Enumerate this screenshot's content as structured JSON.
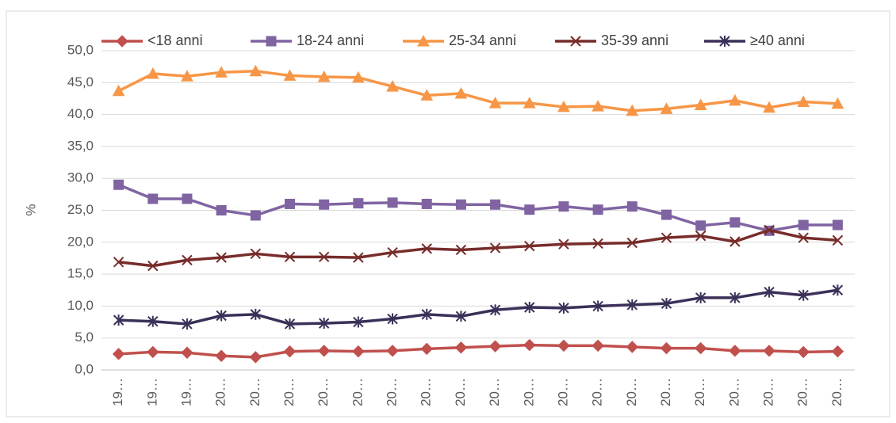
{
  "chart_data": {
    "type": "line",
    "y_label": "%",
    "categories": [
      "19…",
      "19…",
      "19…",
      "20…",
      "20…",
      "20…",
      "20…",
      "20…",
      "20…",
      "20…",
      "20…",
      "20…",
      "20…",
      "20…",
      "20…",
      "20…",
      "20…",
      "20…",
      "20…",
      "20…",
      "20…",
      "20…"
    ],
    "series": [
      {
        "name": "<18 anni",
        "color": "#c0504d",
        "marker": "diamond",
        "values": [
          2.5,
          2.8,
          2.7,
          2.2,
          2.0,
          2.9,
          3.0,
          2.9,
          3.0,
          3.3,
          3.5,
          3.7,
          3.9,
          3.8,
          3.8,
          3.6,
          3.4,
          3.4,
          3.0,
          3.0,
          2.8,
          2.9
        ]
      },
      {
        "name": "18-24 anni",
        "color": "#8064a2",
        "marker": "square",
        "values": [
          29.0,
          26.8,
          26.8,
          25.0,
          24.2,
          26.0,
          25.9,
          26.1,
          26.2,
          26.0,
          25.9,
          25.9,
          25.1,
          25.6,
          25.1,
          25.6,
          24.3,
          22.6,
          23.1,
          21.8,
          22.7,
          22.7
        ]
      },
      {
        "name": "25-34 anni",
        "color": "#f79646",
        "marker": "triangle",
        "values": [
          43.7,
          46.4,
          46.0,
          46.6,
          46.8,
          46.1,
          45.9,
          45.8,
          44.4,
          43.0,
          43.3,
          41.8,
          41.8,
          41.2,
          41.3,
          40.6,
          40.9,
          41.5,
          42.2,
          41.1,
          42.0,
          41.7
        ]
      },
      {
        "name": "35-39 anni",
        "color": "#772c2a",
        "marker": "x",
        "values": [
          16.9,
          16.3,
          17.2,
          17.6,
          18.2,
          17.7,
          17.7,
          17.6,
          18.4,
          19.0,
          18.8,
          19.1,
          19.4,
          19.7,
          19.8,
          19.9,
          20.7,
          21.0,
          20.1,
          21.9,
          20.7,
          20.3
        ]
      },
      {
        "name": "≥40 anni",
        "color": "#3b3058",
        "marker": "star",
        "values": [
          7.8,
          7.6,
          7.2,
          8.5,
          8.7,
          7.2,
          7.3,
          7.5,
          8.0,
          8.7,
          8.4,
          9.4,
          9.8,
          9.7,
          10.0,
          10.2,
          10.4,
          11.3,
          11.3,
          12.2,
          11.7,
          12.5
        ]
      }
    ],
    "ylim": [
      0,
      50
    ],
    "yticks": [
      {
        "value": 0,
        "label": "0,0"
      },
      {
        "value": 5,
        "label": "5,0"
      },
      {
        "value": 10,
        "label": "10,0"
      },
      {
        "value": 15,
        "label": "15,0"
      },
      {
        "value": 20,
        "label": "20,0"
      },
      {
        "value": 25,
        "label": "25,0"
      },
      {
        "value": 30,
        "label": "30,0"
      },
      {
        "value": 35,
        "label": "35,0"
      },
      {
        "value": 40,
        "label": "40,0"
      },
      {
        "value": 45,
        "label": "45,0"
      },
      {
        "value": 50,
        "label": "50,0"
      }
    ],
    "grid": true,
    "legend": "top"
  }
}
